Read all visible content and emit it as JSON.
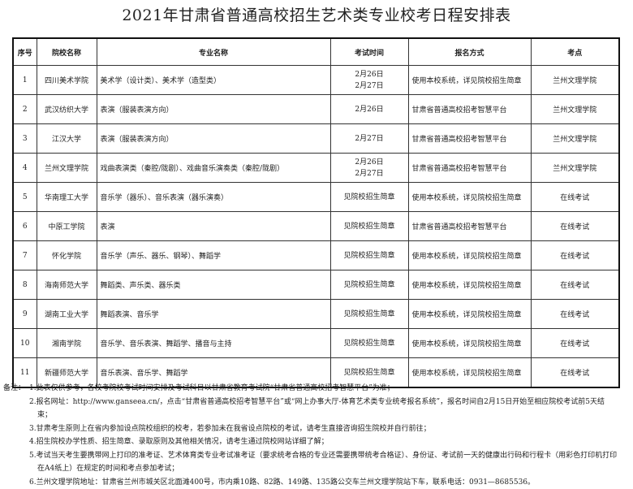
{
  "title": "2021年甘肃省普通高校招生艺术类专业校考日程安排表",
  "table": {
    "headers": [
      "序号",
      "院校名称",
      "专业名称",
      "考试时间",
      "报名方式",
      "考点"
    ],
    "rows": [
      {
        "no": "1",
        "school": "四川美术学院",
        "major": "美术学（设计类）、美术学（造型类）",
        "dates": [
          "2月26日",
          "2月27日"
        ],
        "signup": "使用本校系统，详见院校招生简章",
        "site": "兰州文理学院"
      },
      {
        "no": "2",
        "school": "武汉纺织大学",
        "major": "表演（服装表演方向）",
        "dates": [
          "2月26日"
        ],
        "signup": "甘肃省普通高校招考智慧平台",
        "site": "兰州文理学院"
      },
      {
        "no": "3",
        "school": "江汉大学",
        "major": "表演（服装表演方向）",
        "dates": [
          "2月27日"
        ],
        "signup": "甘肃省普通高校招考智慧平台",
        "site": "兰州文理学院"
      },
      {
        "no": "4",
        "school": "兰州文理学院",
        "major": "戏曲表演类（秦腔/陇剧）、戏曲音乐演奏类（秦腔/陇剧）",
        "dates": [
          "2月26日",
          "2月27日"
        ],
        "signup": "甘肃省普通高校招考智慧平台",
        "site": "兰州文理学院"
      },
      {
        "no": "5",
        "school": "华南理工大学",
        "major": "音乐学（器乐）、音乐表演（器乐演奏）",
        "dates": [
          "见院校招生简章"
        ],
        "signup": "使用本校系统，详见院校招生简章",
        "site": "在线考试"
      },
      {
        "no": "6",
        "school": "中原工学院",
        "major": "表演",
        "dates": [
          "见院校招生简章"
        ],
        "signup": "甘肃省普通高校招考智慧平台",
        "site": "在线考试"
      },
      {
        "no": "7",
        "school": "怀化学院",
        "major": "音乐学（声乐、器乐、钢琴）、舞蹈学",
        "dates": [
          "见院校招生简章"
        ],
        "signup": "使用本校系统，详见院校招生简章",
        "site": "在线考试"
      },
      {
        "no": "8",
        "school": "海南师范大学",
        "major": "舞蹈类、声乐类、器乐类",
        "dates": [
          "见院校招生简章"
        ],
        "signup": "使用本校系统，详见院校招生简章",
        "site": "在线考试"
      },
      {
        "no": "9",
        "school": "湖南工业大学",
        "major": "舞蹈表演、音乐学",
        "dates": [
          "见院校招生简章"
        ],
        "signup": "使用本校系统，详见院校招生简章",
        "site": "在线考试"
      },
      {
        "no": "10",
        "school": "湘南学院",
        "major": "音乐学、音乐表演、舞蹈学、播音与主持",
        "dates": [
          "见院校招生简章"
        ],
        "signup": "使用本校系统，详见院校招生简章",
        "site": "在线考试"
      },
      {
        "no": "11",
        "school": "新疆师范大学",
        "major": "音乐表演、音乐学、舞蹈学",
        "dates": [
          "见院校招生简章"
        ],
        "signup": "使用本校系统，详见院校招生简章",
        "site": "在线考试"
      }
    ]
  },
  "notes": {
    "label": "备注：",
    "items": [
      [
        "1.此表仅供参考，各校考院校考试时间安排及考试科目以甘肃省教育考试院“甘肃省普通高校招考智慧平台”为准；"
      ],
      [
        "2.报名网址：http://www.ganseea.cn/，点击“甘肃省普通高校招考智慧平台”或“网上办事大厅-体育艺术类专业统考报名系统”，报名时间自2月15日开始至相应院校考试前5天结",
        "束；"
      ],
      [
        "3.甘肃考生原则上在省内参加设点院校组织的校考，若参加未在我省设点院校的考试，请考生直接咨询招生院校并自行前往；"
      ],
      [
        "4.招生院校办学性质、招生简章、录取原则及其他相关情况，请考生通过院校网站详细了解；"
      ],
      [
        "5.考试当天考生要携带网上打印的准考证、艺术体育类专业考试准考证（要求统考合格的专业还需要携带统考合格证）、身份证、考试前一天的健康出行码和行程卡（用彩色打印机打印",
        "在A4纸上）在规定的时间和考点参加考试；"
      ],
      [
        "6.兰州文理学院地址：甘肃省兰州市城关区北面滩400号，市内乘10路、82路、149路、135路公交车兰州文理学院站下车，联系电话：0931—8685536。"
      ]
    ]
  }
}
